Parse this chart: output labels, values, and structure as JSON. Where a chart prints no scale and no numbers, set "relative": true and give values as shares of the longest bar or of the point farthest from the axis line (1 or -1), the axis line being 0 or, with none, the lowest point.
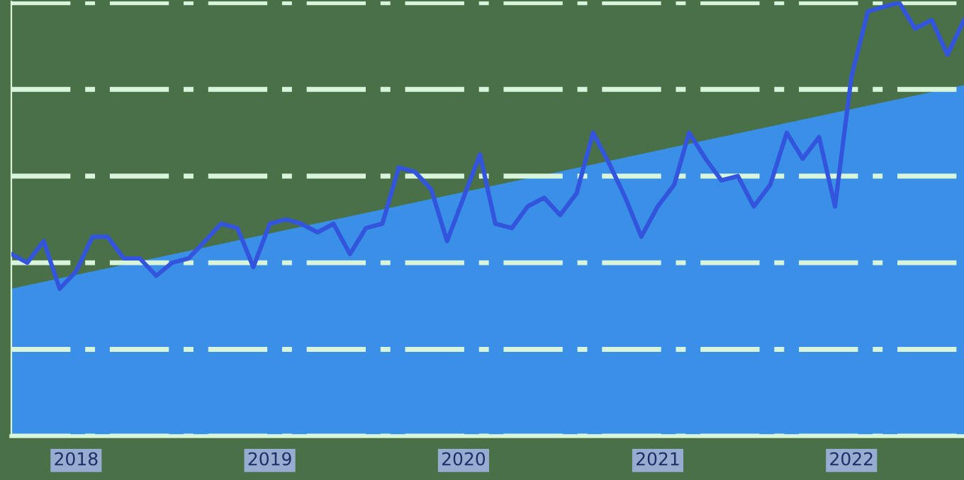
{
  "chart_data": {
    "type": "line",
    "relative": true,
    "grid": "y",
    "marker": "none",
    "line_style": "solid",
    "xlim": [
      "2017-09",
      "2022-08"
    ],
    "xticks": [
      {
        "value": "2018-01",
        "label": "2018"
      },
      {
        "value": "2019-01",
        "label": "2019"
      },
      {
        "value": "2020-01",
        "label": "2020"
      },
      {
        "value": "2021-01",
        "label": "2021"
      },
      {
        "value": "2022-01",
        "label": "2022"
      }
    ],
    "series": [
      {
        "type": "area",
        "color": "#3a8fe6",
        "x": [
          "2017-09",
          "2022-08"
        ],
        "values": [
          0.34,
          0.81
        ]
      },
      {
        "color": "#3355dd",
        "x": [
          "2017-09",
          "2017-10",
          "2017-11",
          "2017-12",
          "2018-01",
          "2018-02",
          "2018-03",
          "2018-04",
          "2018-05",
          "2018-06",
          "2018-07",
          "2018-08",
          "2018-09",
          "2018-10",
          "2018-11",
          "2018-12",
          "2019-01",
          "2019-02",
          "2019-03",
          "2019-04",
          "2019-05",
          "2019-06",
          "2019-07",
          "2019-08",
          "2019-09",
          "2019-10",
          "2019-11",
          "2019-12",
          "2020-01",
          "2020-02",
          "2020-03",
          "2020-04",
          "2020-05",
          "2020-06",
          "2020-07",
          "2020-08",
          "2020-09",
          "2020-10",
          "2020-11",
          "2020-12",
          "2021-01",
          "2021-02",
          "2021-03",
          "2021-04",
          "2021-05",
          "2021-06",
          "2021-07",
          "2021-08",
          "2021-09",
          "2021-10",
          "2021-11",
          "2021-12",
          "2022-01",
          "2022-02",
          "2022-03",
          "2022-04",
          "2022-05",
          "2022-06",
          "2022-07",
          "2022-08"
        ],
        "values": [
          0.42,
          0.4,
          0.45,
          0.34,
          0.38,
          0.46,
          0.46,
          0.41,
          0.41,
          0.37,
          0.4,
          0.41,
          0.45,
          0.49,
          0.48,
          0.39,
          0.49,
          0.5,
          0.49,
          0.47,
          0.49,
          0.42,
          0.48,
          0.49,
          0.62,
          0.61,
          0.57,
          0.45,
          0.55,
          0.65,
          0.49,
          0.48,
          0.53,
          0.55,
          0.51,
          0.56,
          0.7,
          0.63,
          0.55,
          0.46,
          0.53,
          0.58,
          0.7,
          0.64,
          0.59,
          0.6,
          0.53,
          0.58,
          0.7,
          0.64,
          0.69,
          0.53,
          0.83,
          0.98,
          0.99,
          1.0,
          0.94,
          0.96,
          0.88,
          0.96
        ]
      }
    ]
  }
}
